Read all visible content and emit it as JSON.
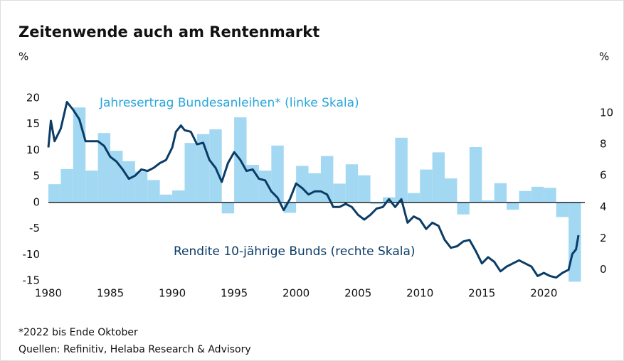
{
  "chart_data": {
    "type": "bar_line",
    "title": "Zeitenwende auch am Rentenmarkt",
    "y_label": "%",
    "y2_label": "%",
    "footnote": "*2022 bis Ende Oktober",
    "source": "Quellen: Refinitiv, Helaba Research & Advisory",
    "xlim": [
      1980,
      2023.2
    ],
    "xticks": [
      1980,
      1985,
      1990,
      1995,
      2000,
      2005,
      2010,
      2015,
      2020
    ],
    "ylim": [
      -15,
      20
    ],
    "yticks": [
      -15,
      -10,
      -5,
      0,
      5,
      10,
      15,
      20
    ],
    "y2lim": [
      -0.7,
      10.95
    ],
    "y2ticks": [
      0,
      2,
      4,
      6,
      8,
      10
    ],
    "series": [
      {
        "name": "Jahresertrag Bundesanleihen* (linke Skala)",
        "color": "#a3d8f3",
        "kind": "bar",
        "x": [
          1980,
          1981,
          1982,
          1983,
          1984,
          1985,
          1986,
          1987,
          1988,
          1989,
          1990,
          1991,
          1992,
          1993,
          1994,
          1995,
          1996,
          1997,
          1998,
          1999,
          2000,
          2001,
          2002,
          2003,
          2004,
          2005,
          2006,
          2007,
          2008,
          2009,
          2010,
          2011,
          2012,
          2013,
          2014,
          2015,
          2016,
          2017,
          2018,
          2019,
          2020,
          2021,
          2022
        ],
        "values": [
          3.5,
          6.4,
          18.2,
          6.1,
          13.3,
          9.9,
          7.9,
          5.9,
          4.3,
          1.5,
          2.3,
          11.4,
          13.1,
          14.0,
          -2.1,
          16.3,
          7.2,
          6.1,
          10.9,
          -2.0,
          7.0,
          5.6,
          8.9,
          3.6,
          7.3,
          5.2,
          -0.3,
          1.0,
          12.4,
          1.8,
          6.3,
          9.6,
          4.6,
          -2.3,
          10.6,
          0.4,
          3.7,
          -1.4,
          2.2,
          3.0,
          2.8,
          -2.8,
          -15.2
        ]
      },
      {
        "name": "Rendite 10-jährige Bunds (rechte Skala)",
        "color": "#0b3c66",
        "kind": "line",
        "axis": "y2",
        "x": [
          1980.0,
          1980.2,
          1980.5,
          1981.0,
          1981.5,
          1981.7,
          1982.0,
          1982.5,
          1983.0,
          1983.5,
          1984.0,
          1984.5,
          1985.0,
          1985.5,
          1986.0,
          1986.5,
          1987.0,
          1987.5,
          1988.0,
          1988.5,
          1989.0,
          1989.5,
          1990.0,
          1990.3,
          1990.7,
          1991.0,
          1991.5,
          1992.0,
          1992.5,
          1993.0,
          1993.5,
          1994.0,
          1994.5,
          1995.0,
          1995.5,
          1996.0,
          1996.5,
          1997.0,
          1997.5,
          1998.0,
          1998.5,
          1999.0,
          1999.5,
          2000.0,
          2000.5,
          2001.0,
          2001.5,
          2002.0,
          2002.5,
          2003.0,
          2003.5,
          2004.0,
          2004.5,
          2005.0,
          2005.5,
          2006.0,
          2006.5,
          2007.0,
          2007.5,
          2008.0,
          2008.5,
          2009.0,
          2009.5,
          2010.0,
          2010.5,
          2011.0,
          2011.5,
          2012.0,
          2012.5,
          2013.0,
          2013.5,
          2014.0,
          2014.5,
          2015.0,
          2015.5,
          2016.0,
          2016.5,
          2017.0,
          2017.5,
          2018.0,
          2018.5,
          2019.0,
          2019.5,
          2020.0,
          2020.5,
          2021.0,
          2021.5,
          2022.0,
          2022.3,
          2022.6,
          2022.8
        ],
        "values": [
          7.8,
          9.5,
          8.2,
          9.0,
          10.7,
          10.5,
          10.2,
          9.6,
          8.2,
          8.2,
          8.2,
          7.9,
          7.2,
          6.9,
          6.4,
          5.8,
          6.0,
          6.4,
          6.3,
          6.5,
          6.8,
          7.0,
          7.8,
          8.8,
          9.2,
          8.9,
          8.8,
          8.0,
          8.1,
          7.0,
          6.5,
          5.6,
          6.8,
          7.5,
          7.0,
          6.3,
          6.4,
          5.8,
          5.7,
          5.0,
          4.6,
          3.8,
          4.5,
          5.5,
          5.2,
          4.8,
          5.0,
          5.0,
          4.8,
          4.0,
          4.0,
          4.2,
          4.0,
          3.5,
          3.2,
          3.5,
          3.9,
          4.0,
          4.5,
          4.0,
          4.5,
          3.0,
          3.4,
          3.2,
          2.6,
          3.0,
          2.8,
          1.9,
          1.4,
          1.5,
          1.8,
          1.9,
          1.2,
          0.4,
          0.8,
          0.5,
          -0.1,
          0.2,
          0.4,
          0.6,
          0.4,
          0.2,
          -0.4,
          -0.2,
          -0.4,
          -0.5,
          -0.2,
          0.0,
          1.0,
          1.3,
          2.2
        ]
      }
    ]
  }
}
